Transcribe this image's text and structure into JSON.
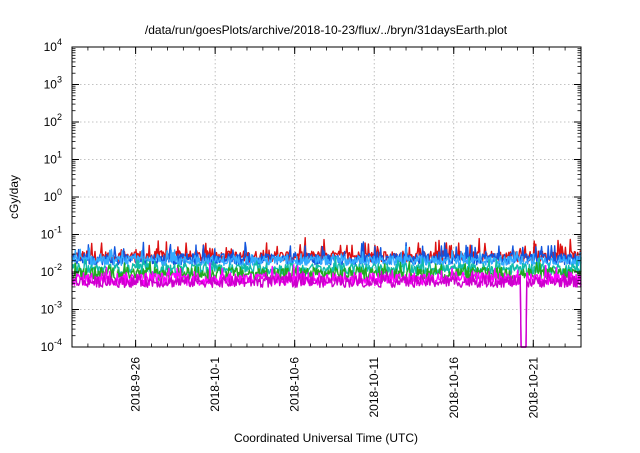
{
  "chart_data": {
    "type": "line",
    "title": "/data/run/goesPlots/archive/2018-10-23/flux/../bryn/31daysEarth.plot",
    "xlabel": "Coordinated Universal Time (UTC)",
    "ylabel": "cGy/day",
    "yscale": "log",
    "ylim": [
      0.0001,
      10000
    ],
    "xlim": [
      "2018-09-22",
      "2018-10-24"
    ],
    "grid": true,
    "legend": "none",
    "x_ticks": [
      "2018-9-26",
      "2018-10-1",
      "2018-10-6",
      "2018-10-11",
      "2018-10-16",
      "2018-10-21"
    ],
    "y_ticks": [
      {
        "base": "10",
        "exp": "-4"
      },
      {
        "base": "10",
        "exp": "-3"
      },
      {
        "base": "10",
        "exp": "-2"
      },
      {
        "base": "10",
        "exp": "-1"
      },
      {
        "base": "10",
        "exp": "0"
      },
      {
        "base": "10",
        "exp": "1"
      },
      {
        "base": "10",
        "exp": "2"
      },
      {
        "base": "10",
        "exp": "3"
      },
      {
        "base": "10",
        "exp": "4"
      }
    ],
    "series": [
      {
        "color": "#dd1111",
        "baseline": 0.026,
        "spread": 0.3,
        "spike_prob": 0.1,
        "spike": 2.4
      },
      {
        "color": "#1155dd",
        "baseline": 0.022,
        "spread": 0.3,
        "spike_prob": 0.1,
        "spike": 2.2
      },
      {
        "color": "#33aaff",
        "baseline": 0.02,
        "spread": 0.25,
        "spike_prob": 0.08,
        "spike": 1.8
      },
      {
        "color": "#11bbaa",
        "baseline": 0.012,
        "spread": 0.3,
        "spike_prob": 0.05,
        "spike": 1.6
      },
      {
        "color": "#22aa22",
        "baseline": 0.009,
        "spread": 0.35,
        "spike_prob": 0.05,
        "spike": 1.5
      },
      {
        "color": "#ff00ff",
        "baseline": 0.0065,
        "spread": 0.35,
        "spike_prob": 0.05,
        "spike": 2.0
      },
      {
        "color": "#cc00cc",
        "baseline": 0.0055,
        "spread": 0.3,
        "spike_prob": 0.04,
        "spike": 1.6
      }
    ],
    "dropout": {
      "date": "2018-10-20",
      "min": 0.0001
    }
  }
}
